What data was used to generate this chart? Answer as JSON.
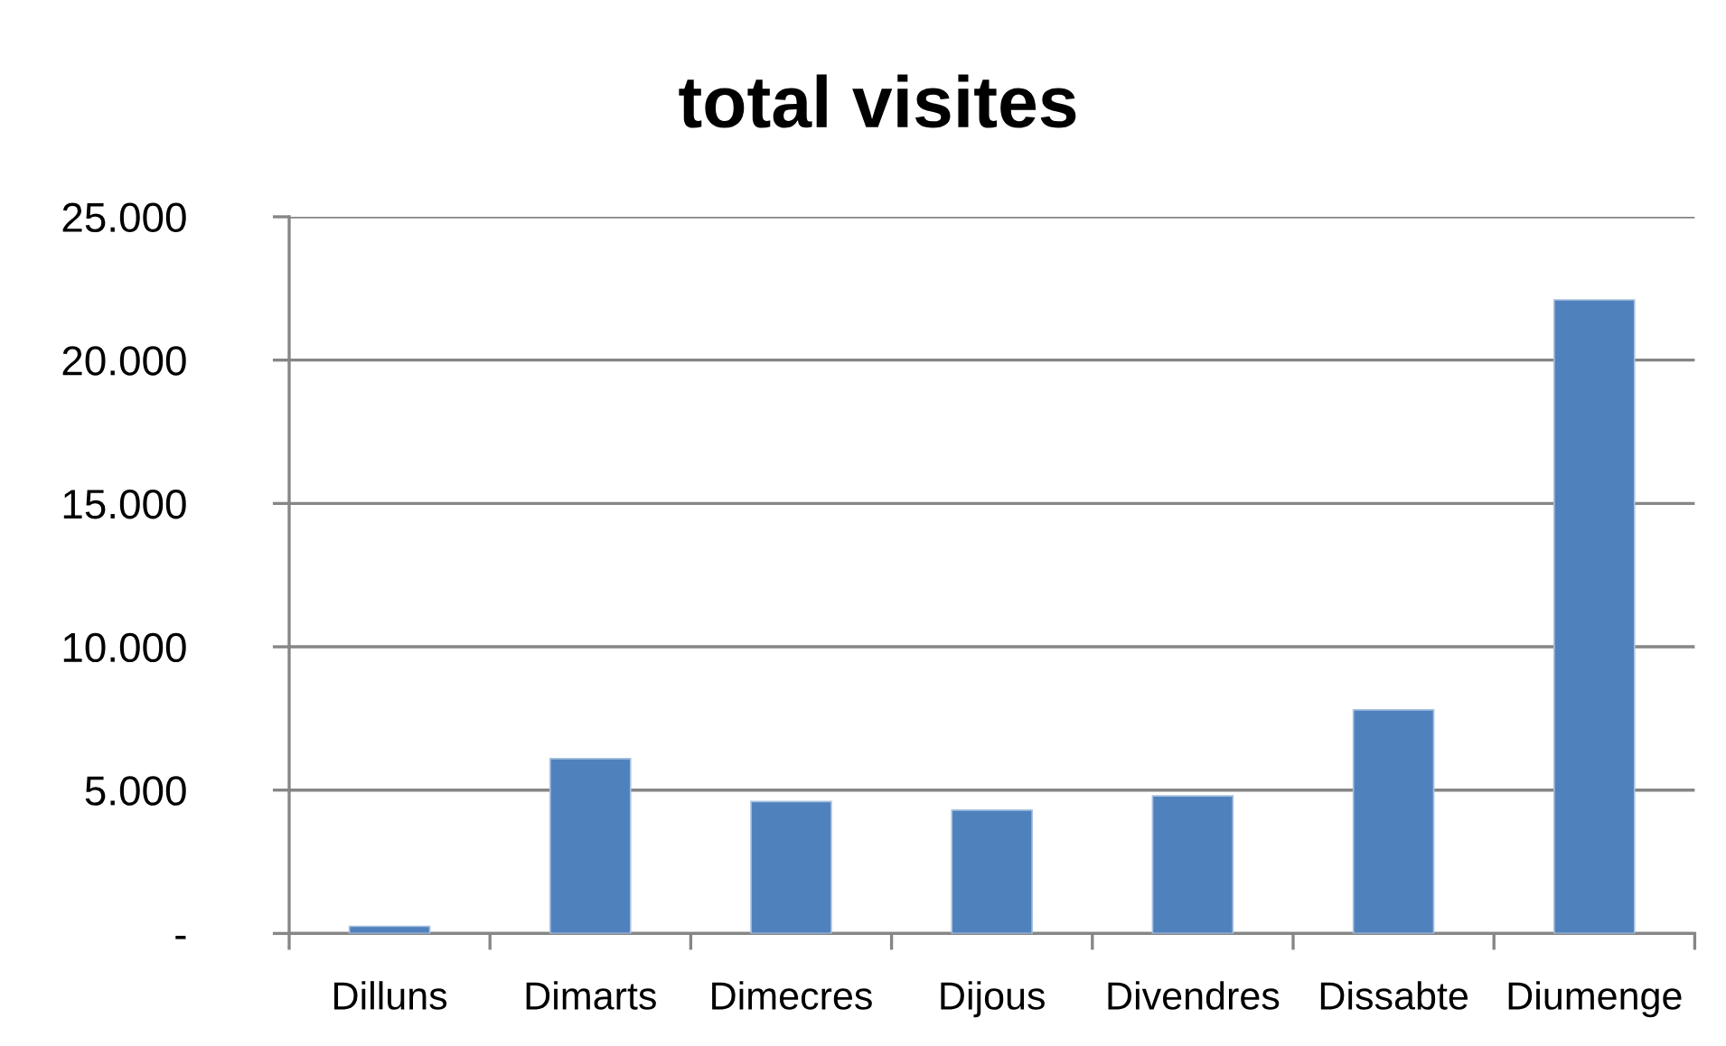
{
  "chart_data": {
    "type": "bar",
    "title": "total visites",
    "categories": [
      "Dilluns",
      "Dimarts",
      "Dimecres",
      "Dijous",
      "Divendres",
      "Dissabte",
      "Diumenge"
    ],
    "series": [
      {
        "color": "#4f81bd",
        "values": [
          250,
          6100,
          4600,
          4300,
          4800,
          7800,
          22100
        ]
      }
    ],
    "ylim": [
      0,
      25000
    ],
    "yticks": [
      {
        "value": 0,
        "label": "-"
      },
      {
        "value": 5000,
        "label": "5.000"
      },
      {
        "value": 10000,
        "label": "10.000"
      },
      {
        "value": 15000,
        "label": "15.000"
      },
      {
        "value": 20000,
        "label": "20.000"
      },
      {
        "value": 25000,
        "label": "25.000"
      }
    ],
    "grid": "y"
  }
}
